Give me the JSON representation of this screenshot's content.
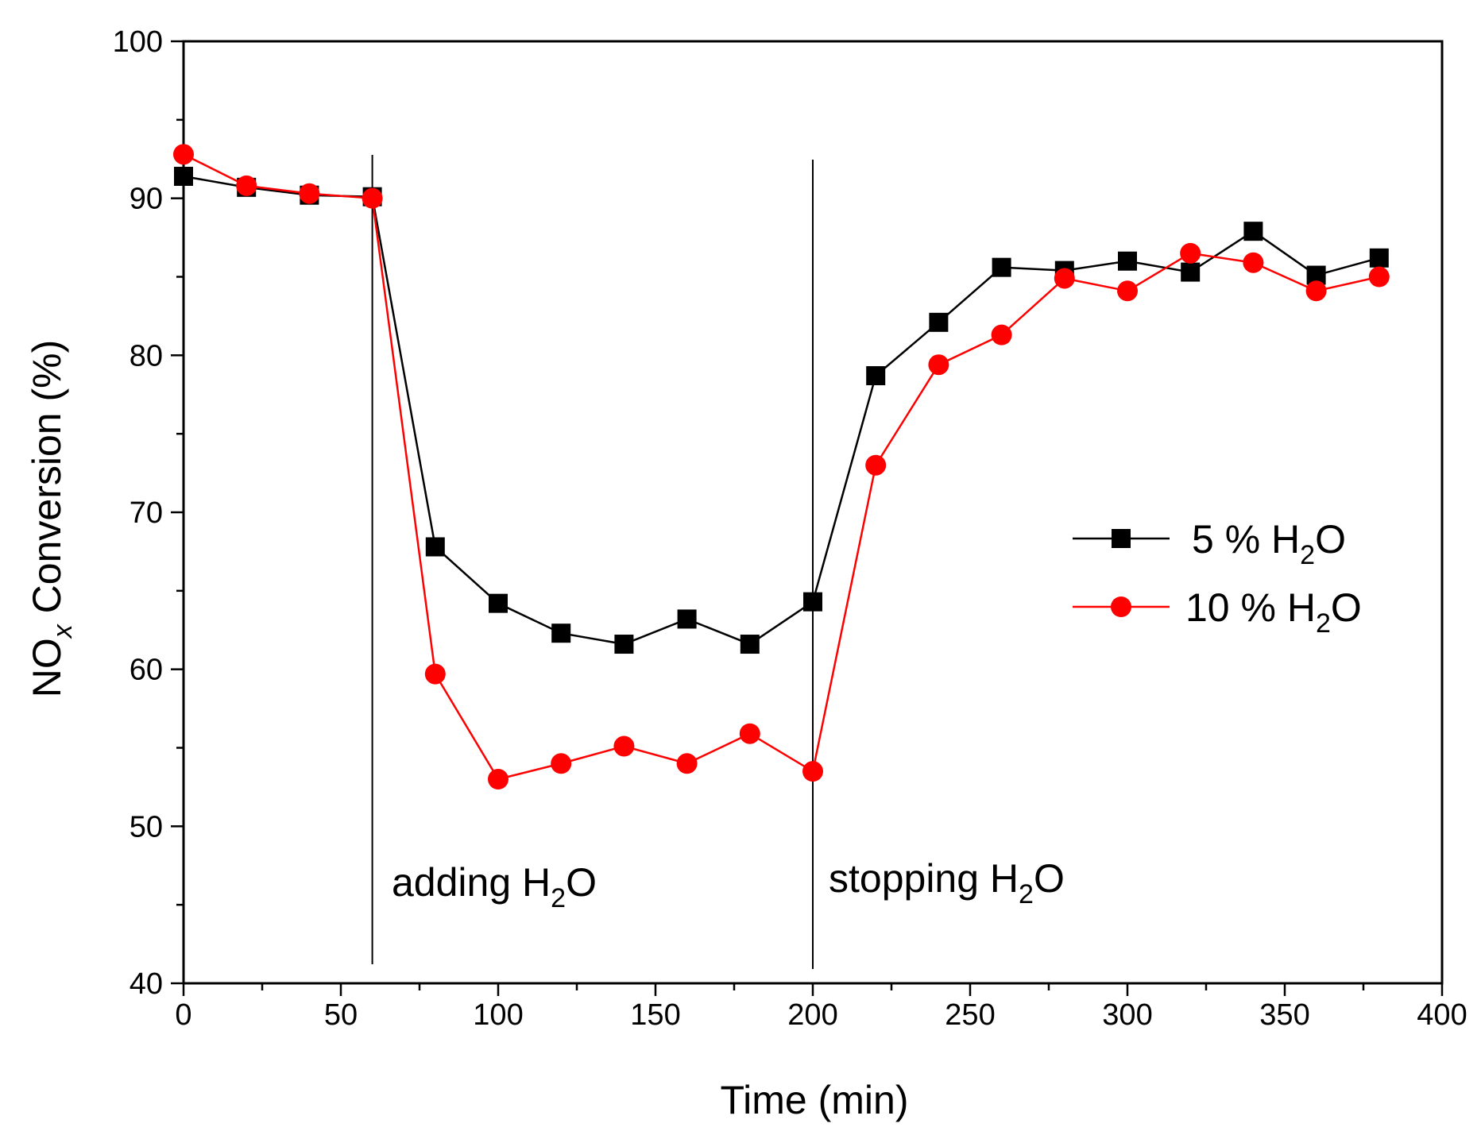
{
  "chart_data": {
    "type": "line",
    "xlabel": "Time (min)",
    "ylabel": {
      "main": "NO",
      "subscript": "x",
      "rest": " Conversion (%)"
    },
    "xlim": [
      0,
      400
    ],
    "ylim": [
      40,
      100
    ],
    "xticks": [
      0,
      50,
      100,
      150,
      200,
      250,
      300,
      350,
      400
    ],
    "yticks": [
      40,
      50,
      60,
      70,
      80,
      90,
      100
    ],
    "x": [
      0,
      20,
      40,
      60,
      80,
      100,
      120,
      140,
      160,
      180,
      200,
      220,
      240,
      260,
      280,
      300,
      320,
      340,
      360,
      380
    ],
    "series": [
      {
        "name": "5 % H2O",
        "label_parts": [
          "5  % H",
          "2",
          "O"
        ],
        "marker": "square",
        "color": "#000000",
        "values": [
          91.4,
          90.7,
          90.2,
          90.1,
          67.8,
          64.2,
          62.3,
          61.6,
          63.2,
          61.6,
          64.3,
          78.7,
          82.1,
          85.6,
          85.4,
          86.0,
          85.3,
          87.9,
          85.1,
          86.2
        ]
      },
      {
        "name": "10 % H2O",
        "label_parts": [
          "10 % H",
          "2",
          "O"
        ],
        "marker": "circle",
        "color": "#ff0000",
        "values": [
          92.8,
          90.8,
          90.3,
          90.0,
          59.7,
          53.0,
          54.0,
          55.1,
          54.0,
          55.9,
          53.5,
          73.0,
          79.4,
          81.3,
          84.9,
          84.1,
          86.5,
          85.9,
          84.1,
          85.0
        ]
      }
    ],
    "annotations": [
      {
        "x": 60,
        "parts": [
          "adding H",
          "2",
          "O"
        ]
      },
      {
        "x": 200,
        "parts": [
          "stopping H",
          "2",
          "O"
        ]
      }
    ],
    "legend_position": "center-right",
    "grid": false
  }
}
